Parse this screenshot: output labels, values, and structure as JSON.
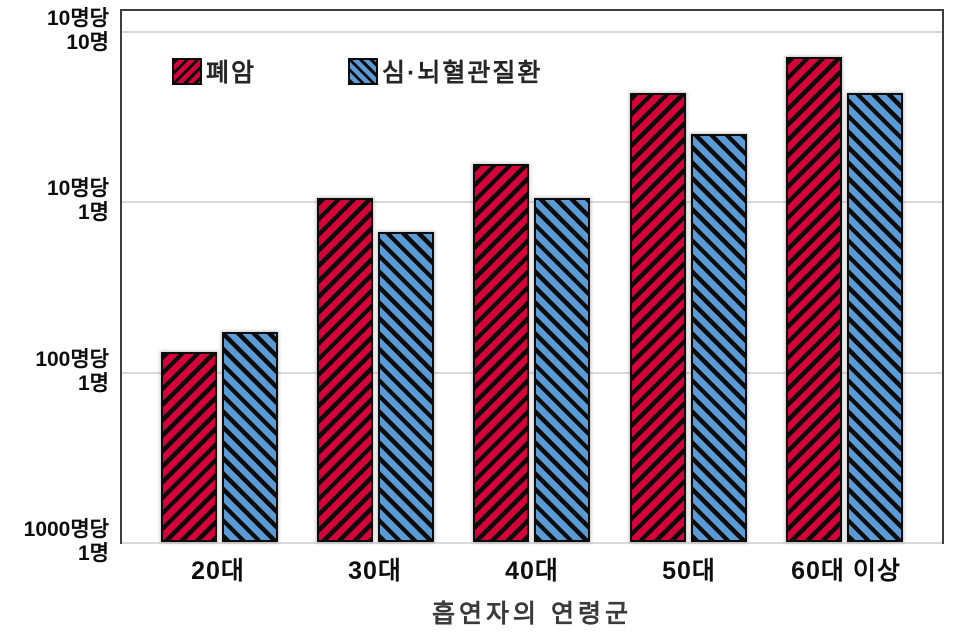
{
  "chart_data": {
    "type": "bar",
    "scale": "log",
    "grid": "horizontal",
    "xlabel": "흡연자의 연령군",
    "categories": [
      "20대",
      "30대",
      "40대",
      "50대",
      "60대 이상"
    ],
    "series": [
      {
        "name": "폐암",
        "key": "lung-cancer",
        "color": "#d50039",
        "hatch": "forward-diagonal",
        "values": [
          0.013,
          0.105,
          0.165,
          0.43,
          0.7
        ]
      },
      {
        "name": "심·뇌혈관질환",
        "key": "cardio-cerebrovascular-disease",
        "color": "#5b9bd5",
        "hatch": "back-diagonal",
        "values": [
          0.017,
          0.066,
          0.105,
          0.25,
          0.43
        ]
      }
    ],
    "ylim": [
      0.001,
      1.31
    ],
    "y_ticks": [
      {
        "value": 1.0,
        "label_line1": "10명당",
        "label_line2": "10명"
      },
      {
        "value": 0.1,
        "label_line1": "10명당",
        "label_line2": "1명"
      },
      {
        "value": 0.01,
        "label_line1": "100명당",
        "label_line2": "1명"
      },
      {
        "value": 0.001,
        "label_line1": "1000명당",
        "label_line2": "1명"
      }
    ],
    "legend_position": "top-left-inside"
  }
}
